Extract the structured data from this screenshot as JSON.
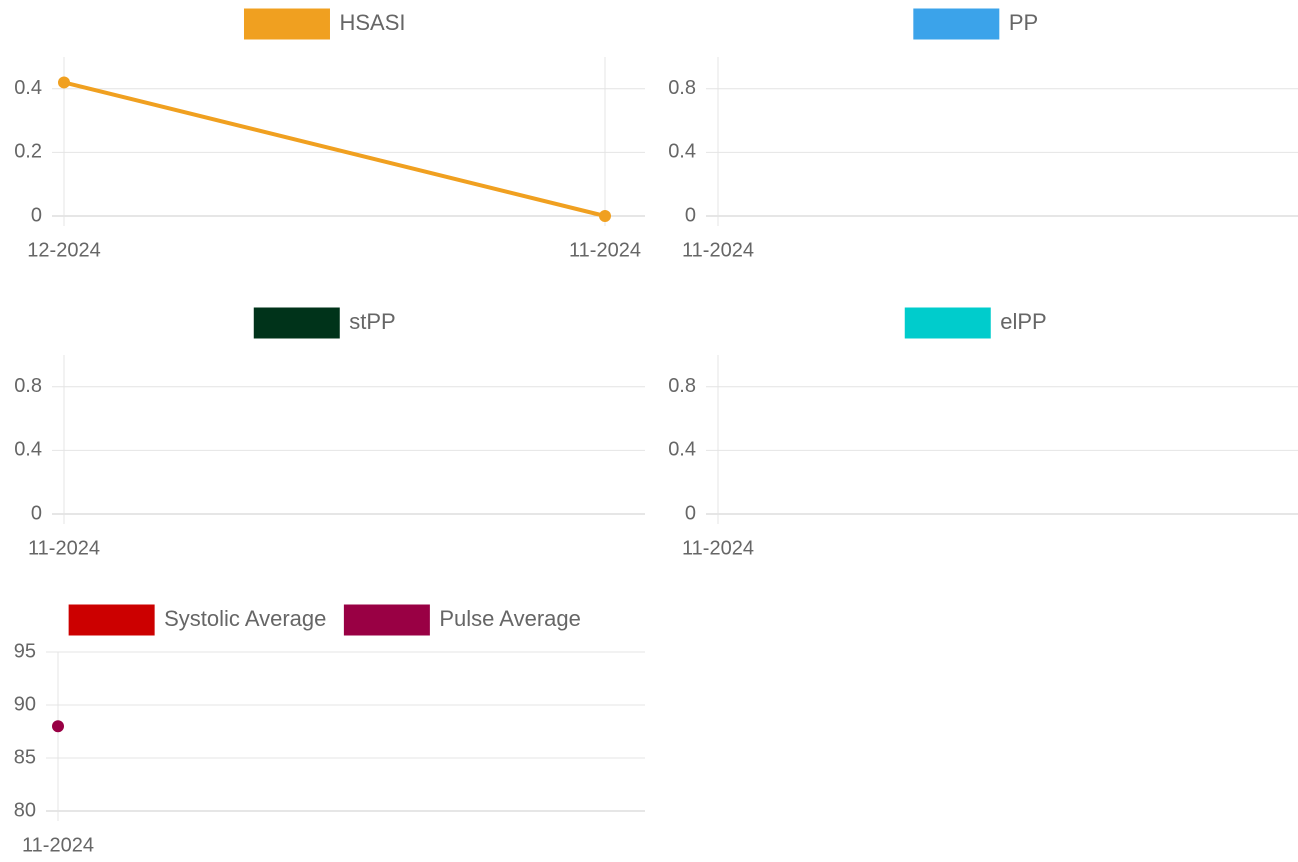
{
  "chart_data": [
    {
      "type": "line",
      "categories": [
        "12-2024",
        "11-2024"
      ],
      "series": [
        {
          "name": "HSASI",
          "color": "#f0a020",
          "values": [
            0.42,
            0
          ]
        }
      ],
      "ylim": [
        0,
        0.5
      ],
      "yticks": [
        0,
        0.2,
        0.4
      ],
      "grid": true
    },
    {
      "type": "line",
      "categories": [
        "11-2024"
      ],
      "series": [
        {
          "name": "PP",
          "color": "#3ba3ea",
          "values": [
            null
          ]
        }
      ],
      "ylim": [
        0,
        1
      ],
      "yticks": [
        0,
        0.4,
        0.8
      ],
      "grid": true
    },
    {
      "type": "line",
      "categories": [
        "11-2024"
      ],
      "series": [
        {
          "name": "stPP",
          "color": "#00331a",
          "values": [
            null
          ]
        }
      ],
      "ylim": [
        0,
        1
      ],
      "yticks": [
        0,
        0.4,
        0.8
      ],
      "grid": true
    },
    {
      "type": "line",
      "categories": [
        "11-2024"
      ],
      "series": [
        {
          "name": "elPP",
          "color": "#00cccc",
          "values": [
            null
          ]
        }
      ],
      "ylim": [
        0,
        1
      ],
      "yticks": [
        0,
        0.4,
        0.8
      ],
      "grid": true
    },
    {
      "type": "line",
      "categories": [
        "11-2024"
      ],
      "series": [
        {
          "name": "Systolic Average",
          "color": "#cc0000",
          "values": [
            null
          ]
        },
        {
          "name": "Pulse Average",
          "color": "#990044",
          "values": [
            88
          ]
        }
      ],
      "ylim": [
        80,
        95
      ],
      "yticks": [
        80,
        85,
        90,
        95
      ],
      "grid": true
    }
  ]
}
